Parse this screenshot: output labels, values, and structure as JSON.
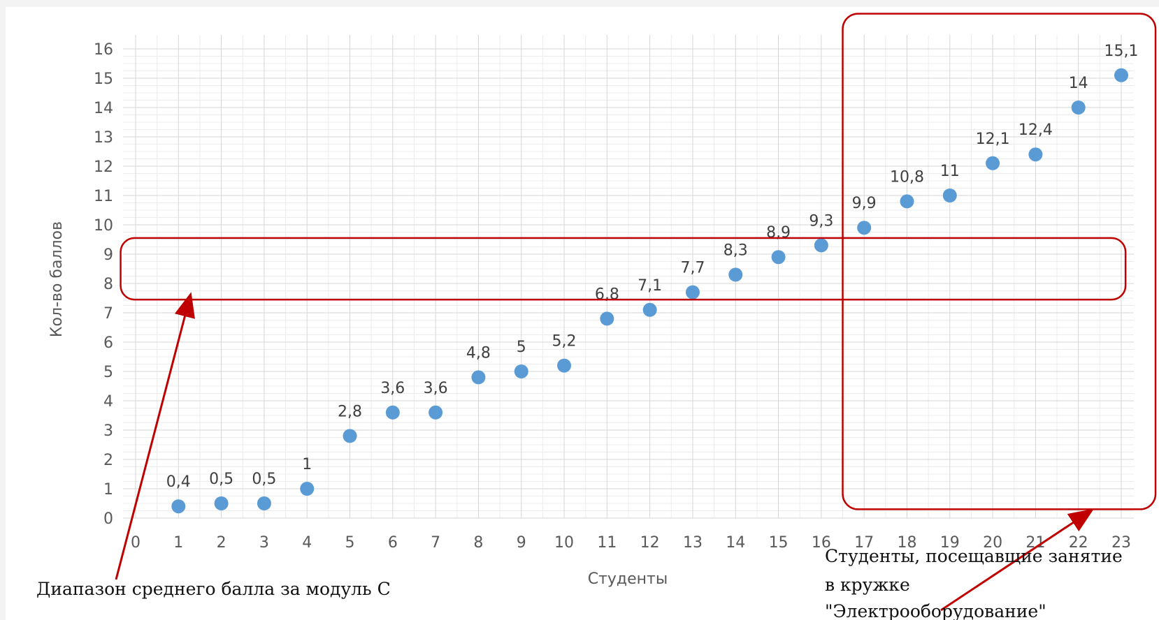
{
  "chart_data": {
    "type": "scatter",
    "title": "",
    "xlabel": "Студенты",
    "ylabel": "Кол-во баллов",
    "xlim": [
      0,
      23
    ],
    "ylim": [
      0,
      16
    ],
    "x_ticks": [
      "0",
      "1",
      "2",
      "3",
      "4",
      "5",
      "6",
      "7",
      "8",
      "9",
      "10",
      "11",
      "12",
      "13",
      "14",
      "15",
      "16",
      "17",
      "18",
      "19",
      "20",
      "21",
      "22",
      "23"
    ],
    "y_ticks": [
      "0",
      "1",
      "2",
      "3",
      "4",
      "5",
      "6",
      "7",
      "8",
      "9",
      "10",
      "11",
      "12",
      "13",
      "14",
      "15",
      "16"
    ],
    "grid": true,
    "minor_grid": true,
    "marker_color": "#5b9bd5",
    "series": [
      {
        "x": [
          1,
          2,
          3,
          4,
          5,
          6,
          7,
          8,
          9,
          10,
          11,
          12,
          13,
          14,
          15,
          16,
          17,
          18,
          19,
          20,
          21,
          22,
          23
        ],
        "y": [
          0.4,
          0.5,
          0.5,
          1,
          2.8,
          3.6,
          3.6,
          4.8,
          5,
          5.2,
          6.8,
          7.1,
          7.7,
          8.3,
          8.9,
          9.3,
          9.9,
          10.8,
          11,
          12.1,
          12.4,
          14,
          15.1
        ],
        "labels": [
          "0,4",
          "0,5",
          "0,5",
          "1",
          "2,8",
          "3,6",
          "3,6",
          "4,8",
          "5",
          "5,2",
          "6,8",
          "7,1",
          "7,7",
          "8,3",
          "8,9",
          "9,3",
          "9,9",
          "10,8",
          "11",
          "12,1",
          "12,4",
          "14",
          "15,1"
        ]
      }
    ],
    "annotations": [
      {
        "name": "average-range",
        "text_lines": [
          "Диапазон среднего балла за модуль С"
        ],
        "region": {
          "x_from": -0.35,
          "x_to": 23.1,
          "y_from": 7.45,
          "y_to": 9.55
        },
        "color": "#c00000"
      },
      {
        "name": "club-students",
        "text_lines": [
          "Студенты, посещавщие занятие",
          "в кружке",
          "\"Электрооборудование\""
        ],
        "region": {
          "x_from": 16.5,
          "x_to": 23.8,
          "y_from": 0.3,
          "y_to": 17.2
        },
        "color": "#c00000"
      }
    ]
  }
}
